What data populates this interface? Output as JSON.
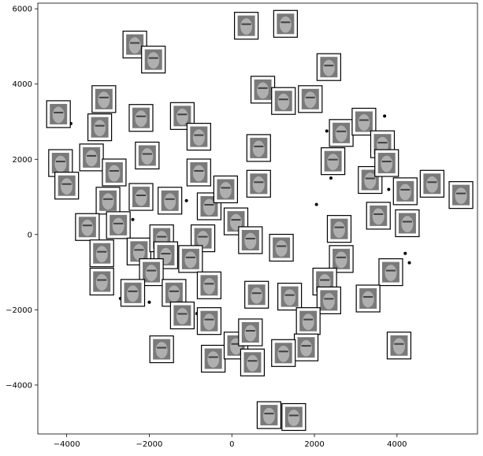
{
  "chart_data": {
    "type": "scatter",
    "title": "",
    "xlabel": "",
    "ylabel": "",
    "xlim": [
      -4700,
      5950
    ],
    "ylim": [
      -5300,
      6150
    ],
    "xticks": [
      -4000,
      -2000,
      0,
      2000,
      4000
    ],
    "yticks": [
      -4000,
      -2000,
      0,
      2000,
      4000,
      6000
    ],
    "xtick_labels": [
      "−4000",
      "−2000",
      "0",
      "2000",
      "4000"
    ],
    "ytick_labels": [
      "−4000",
      "−2000",
      "0",
      "2000",
      "4000",
      "6000"
    ],
    "grid": false,
    "marker_color": "#000000",
    "thumbnail_color": "#7a7a7a",
    "points": [
      {
        "x": -4200,
        "y": 3200,
        "face": true
      },
      {
        "x": -3100,
        "y": 3600,
        "face": true
      },
      {
        "x": -2350,
        "y": 5050,
        "face": true
      },
      {
        "x": -1900,
        "y": 4650,
        "face": true
      },
      {
        "x": 350,
        "y": 5550,
        "face": true
      },
      {
        "x": 1300,
        "y": 5600,
        "face": true
      },
      {
        "x": -3200,
        "y": 2850,
        "face": true
      },
      {
        "x": -2200,
        "y": 3100,
        "face": true
      },
      {
        "x": -1200,
        "y": 3150,
        "face": true
      },
      {
        "x": 750,
        "y": 3850,
        "face": true
      },
      {
        "x": 1250,
        "y": 3550,
        "face": true
      },
      {
        "x": 1900,
        "y": 3600,
        "face": true
      },
      {
        "x": 2350,
        "y": 4450,
        "face": true
      },
      {
        "x": -4150,
        "y": 1900,
        "face": true
      },
      {
        "x": -3400,
        "y": 2050,
        "face": true
      },
      {
        "x": -2050,
        "y": 2100,
        "face": true
      },
      {
        "x": -800,
        "y": 2600,
        "face": true
      },
      {
        "x": 650,
        "y": 2300,
        "face": true
      },
      {
        "x": 2650,
        "y": 2700,
        "face": true
      },
      {
        "x": 3200,
        "y": 3000,
        "face": true
      },
      {
        "x": 3650,
        "y": 2400,
        "face": true
      },
      {
        "x": -4000,
        "y": 1300,
        "face": true
      },
      {
        "x": -2850,
        "y": 1650,
        "face": true
      },
      {
        "x": -800,
        "y": 1650,
        "face": true
      },
      {
        "x": 2450,
        "y": 1950,
        "face": true
      },
      {
        "x": 3350,
        "y": 1450,
        "face": true
      },
      {
        "x": 3750,
        "y": 1900,
        "face": true
      },
      {
        "x": 4200,
        "y": 1150,
        "face": true
      },
      {
        "x": 4850,
        "y": 1350,
        "face": true
      },
      {
        "x": 5550,
        "y": 1050,
        "face": true
      },
      {
        "x": -3000,
        "y": 900,
        "face": true
      },
      {
        "x": -2200,
        "y": 1000,
        "face": true
      },
      {
        "x": -1500,
        "y": 900,
        "face": true
      },
      {
        "x": -550,
        "y": 750,
        "face": true
      },
      {
        "x": -150,
        "y": 1200,
        "face": true
      },
      {
        "x": 650,
        "y": 1350,
        "face": true
      },
      {
        "x": 3550,
        "y": 500,
        "face": true
      },
      {
        "x": 4250,
        "y": 300,
        "face": true
      },
      {
        "x": -3500,
        "y": 200,
        "face": true
      },
      {
        "x": -2750,
        "y": 250,
        "face": true
      },
      {
        "x": 100,
        "y": 350,
        "face": true
      },
      {
        "x": 2600,
        "y": 150,
        "face": true
      },
      {
        "x": -3150,
        "y": -500,
        "face": true
      },
      {
        "x": -2250,
        "y": -450,
        "face": true
      },
      {
        "x": -1700,
        "y": -100,
        "face": true
      },
      {
        "x": -700,
        "y": -100,
        "face": true
      },
      {
        "x": -1600,
        "y": -550,
        "face": true
      },
      {
        "x": -1000,
        "y": -650,
        "face": true
      },
      {
        "x": 450,
        "y": -150,
        "face": true
      },
      {
        "x": 1200,
        "y": -350,
        "face": true
      },
      {
        "x": 2650,
        "y": -650,
        "face": true
      },
      {
        "x": 3850,
        "y": -1000,
        "face": true
      },
      {
        "x": -3150,
        "y": -1250,
        "face": true
      },
      {
        "x": -1950,
        "y": -1000,
        "face": true
      },
      {
        "x": -2400,
        "y": -1550,
        "face": true
      },
      {
        "x": -1400,
        "y": -1550,
        "face": true
      },
      {
        "x": -550,
        "y": -1350,
        "face": true
      },
      {
        "x": 600,
        "y": -1600,
        "face": true
      },
      {
        "x": 1400,
        "y": -1650,
        "face": true
      },
      {
        "x": 2250,
        "y": -1250,
        "face": true
      },
      {
        "x": 2350,
        "y": -1750,
        "face": true
      },
      {
        "x": 3300,
        "y": -1700,
        "face": true
      },
      {
        "x": -1200,
        "y": -2150,
        "face": true
      },
      {
        "x": -550,
        "y": -2300,
        "face": true
      },
      {
        "x": 1850,
        "y": -2300,
        "face": true
      },
      {
        "x": 1800,
        "y": -3000,
        "face": true
      },
      {
        "x": 4050,
        "y": -2950,
        "face": true
      },
      {
        "x": -1700,
        "y": -3050,
        "face": true
      },
      {
        "x": -450,
        "y": -3300,
        "face": true
      },
      {
        "x": 100,
        "y": -2950,
        "face": true
      },
      {
        "x": 450,
        "y": -2600,
        "face": true
      },
      {
        "x": 500,
        "y": -3400,
        "face": true
      },
      {
        "x": 1250,
        "y": -3150,
        "face": true
      },
      {
        "x": 900,
        "y": -4800,
        "face": true
      },
      {
        "x": 1500,
        "y": -4850,
        "face": true
      },
      {
        "x": -3900,
        "y": 2950,
        "face": false
      },
      {
        "x": -2400,
        "y": 400,
        "face": false
      },
      {
        "x": -2300,
        "y": 1200,
        "face": false
      },
      {
        "x": -2500,
        "y": -700,
        "face": false
      },
      {
        "x": -1100,
        "y": 900,
        "face": false
      },
      {
        "x": 2400,
        "y": 1500,
        "face": false
      },
      {
        "x": 3800,
        "y": 1200,
        "face": false
      },
      {
        "x": 4200,
        "y": -500,
        "face": false
      },
      {
        "x": 4300,
        "y": -750,
        "face": false
      },
      {
        "x": 2200,
        "y": -1900,
        "face": false
      },
      {
        "x": -2700,
        "y": -1700,
        "face": false
      },
      {
        "x": -850,
        "y": -2100,
        "face": false
      },
      {
        "x": -2000,
        "y": -1800,
        "face": false
      },
      {
        "x": 2050,
        "y": 800,
        "face": false
      },
      {
        "x": 3700,
        "y": 3150,
        "face": false
      },
      {
        "x": 2300,
        "y": 2750,
        "face": false
      }
    ]
  }
}
